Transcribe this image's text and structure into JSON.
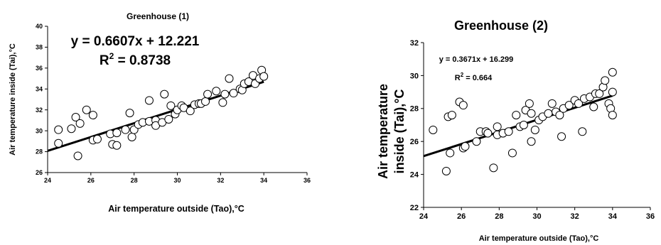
{
  "chart_data": [
    {
      "type": "scatter",
      "title": "Greenhouse (1)",
      "xlabel": "Air temperature outside (Tao),°C",
      "ylabel": "Air temperature inside (Tai),°C",
      "xlim": [
        24,
        36
      ],
      "ylim": [
        26,
        40
      ],
      "xticks": [
        "24",
        "26",
        "28",
        "30",
        "32",
        "34",
        "36"
      ],
      "yticks": [
        "26",
        "28",
        "30",
        "32",
        "34",
        "36",
        "38",
        "40"
      ],
      "equation": "y = 0.6607x + 12.221",
      "r2": "R",
      "r2_sup": "2",
      "r2_value": " = 0.8738",
      "trendline": {
        "slope": 0.6607,
        "intercept": 12.221,
        "x": [
          24,
          34
        ]
      },
      "grid": false,
      "points": [
        [
          24.5,
          30.1
        ],
        [
          24.5,
          28.8
        ],
        [
          25.1,
          30.2
        ],
        [
          25.3,
          31.3
        ],
        [
          25.4,
          27.6
        ],
        [
          25.5,
          30.7
        ],
        [
          25.8,
          32.0
        ],
        [
          26.1,
          31.5
        ],
        [
          26.1,
          29.1
        ],
        [
          26.3,
          29.2
        ],
        [
          26.9,
          29.7
        ],
        [
          27.0,
          28.7
        ],
        [
          27.2,
          29.8
        ],
        [
          27.2,
          28.6
        ],
        [
          27.6,
          30.1
        ],
        [
          27.8,
          31.7
        ],
        [
          27.9,
          29.4
        ],
        [
          28.0,
          30.1
        ],
        [
          28.2,
          30.6
        ],
        [
          28.4,
          30.8
        ],
        [
          28.7,
          30.9
        ],
        [
          28.7,
          32.9
        ],
        [
          29.0,
          31.0
        ],
        [
          29.0,
          30.5
        ],
        [
          29.3,
          30.8
        ],
        [
          29.4,
          33.5
        ],
        [
          29.6,
          31.1
        ],
        [
          29.7,
          32.4
        ],
        [
          29.9,
          31.6
        ],
        [
          30.0,
          32.0
        ],
        [
          30.2,
          32.4
        ],
        [
          30.3,
          32.2
        ],
        [
          30.6,
          31.9
        ],
        [
          30.8,
          32.5
        ],
        [
          31.0,
          32.6
        ],
        [
          31.1,
          32.6
        ],
        [
          31.3,
          32.8
        ],
        [
          31.4,
          33.5
        ],
        [
          31.8,
          33.8
        ],
        [
          32.1,
          32.7
        ],
        [
          32.2,
          33.5
        ],
        [
          32.4,
          35.0
        ],
        [
          32.6,
          33.6
        ],
        [
          32.9,
          34.0
        ],
        [
          33.0,
          33.9
        ],
        [
          33.1,
          34.5
        ],
        [
          33.3,
          34.7
        ],
        [
          33.5,
          35.3
        ],
        [
          33.6,
          34.5
        ],
        [
          33.8,
          35.0
        ],
        [
          33.9,
          35.8
        ],
        [
          34.0,
          35.2
        ]
      ]
    },
    {
      "type": "scatter",
      "title": "Greenhouse (2)",
      "xlabel": "Air temperature outside (Tao),°C",
      "ylabel_line1": "Air temperature",
      "ylabel_line2": "inside (Tai),°C",
      "xlim": [
        24,
        36
      ],
      "ylim": [
        22,
        32
      ],
      "xticks": [
        "24",
        "26",
        "28",
        "30",
        "32",
        "34",
        "36"
      ],
      "yticks": [
        "22",
        "24",
        "26",
        "28",
        "30",
        "32"
      ],
      "equation": "y = 0.3671x + 16.299",
      "r2": "R",
      "r2_sup": "2",
      "r2_value": " = 0.664",
      "trendline": {
        "slope": 0.3671,
        "intercept": 16.299,
        "x": [
          24,
          34
        ]
      },
      "grid": false,
      "points": [
        [
          24.5,
          26.7
        ],
        [
          25.2,
          24.2
        ],
        [
          25.3,
          27.5
        ],
        [
          25.4,
          25.3
        ],
        [
          25.5,
          27.6
        ],
        [
          25.9,
          28.4
        ],
        [
          26.1,
          28.2
        ],
        [
          26.1,
          25.6
        ],
        [
          26.2,
          25.7
        ],
        [
          26.8,
          26.0
        ],
        [
          27.0,
          26.6
        ],
        [
          27.3,
          26.6
        ],
        [
          27.4,
          26.5
        ],
        [
          27.7,
          24.4
        ],
        [
          27.9,
          26.9
        ],
        [
          27.9,
          26.4
        ],
        [
          28.2,
          26.5
        ],
        [
          28.5,
          26.6
        ],
        [
          28.7,
          25.3
        ],
        [
          28.9,
          27.6
        ],
        [
          29.1,
          26.9
        ],
        [
          29.3,
          27.0
        ],
        [
          29.4,
          27.9
        ],
        [
          29.6,
          28.3
        ],
        [
          29.7,
          26.0
        ],
        [
          29.7,
          27.7
        ],
        [
          29.9,
          26.7
        ],
        [
          30.1,
          27.3
        ],
        [
          30.3,
          27.5
        ],
        [
          30.6,
          27.7
        ],
        [
          30.8,
          28.3
        ],
        [
          31.0,
          27.8
        ],
        [
          31.2,
          27.6
        ],
        [
          31.4,
          28.0
        ],
        [
          31.3,
          26.3
        ],
        [
          31.7,
          28.2
        ],
        [
          32.0,
          28.5
        ],
        [
          32.2,
          28.3
        ],
        [
          32.4,
          26.6
        ],
        [
          32.5,
          28.6
        ],
        [
          32.8,
          28.7
        ],
        [
          33.0,
          28.1
        ],
        [
          33.1,
          28.9
        ],
        [
          33.3,
          28.9
        ],
        [
          33.5,
          29.3
        ],
        [
          33.6,
          29.7
        ],
        [
          33.8,
          28.3
        ],
        [
          33.9,
          28.0
        ],
        [
          34.0,
          30.2
        ],
        [
          34.0,
          27.6
        ],
        [
          34.0,
          29.0
        ]
      ]
    }
  ]
}
